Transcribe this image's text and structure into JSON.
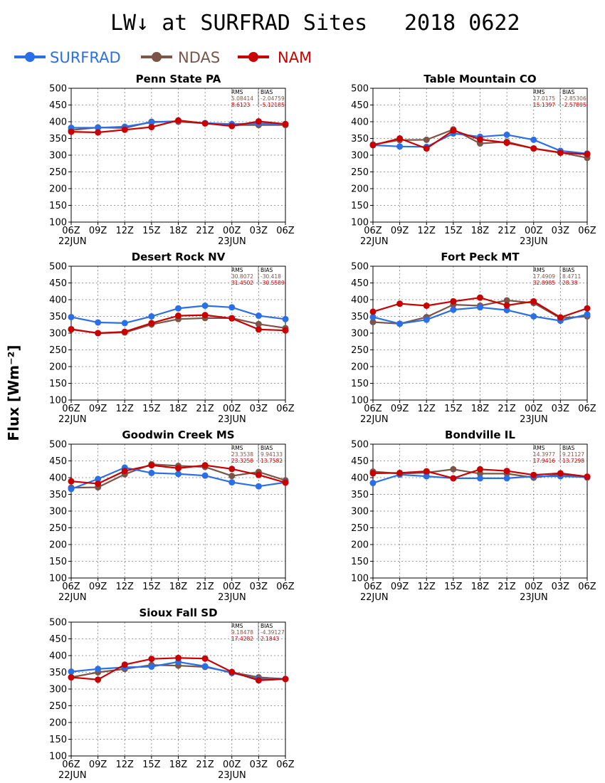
{
  "header": {
    "title": "LW↓ at SURFRAD Sites",
    "date": "2018 0622"
  },
  "colors": {
    "SURFRAD": "#2a6fe6",
    "NDAS": "#7a5548",
    "NAM": "#c80000"
  },
  "y_axis_label": "Flux [Wm⁻²]",
  "chart_data": [
    {
      "type": "line",
      "title": "Penn State PA",
      "categories": [
        "06Z",
        "09Z",
        "12Z",
        "15Z",
        "18Z",
        "21Z",
        "00Z",
        "03Z",
        "06Z"
      ],
      "date_labels": [
        "22JUN",
        "23JUN"
      ],
      "ylim": [
        100,
        500
      ],
      "yticks": [
        100,
        150,
        200,
        250,
        300,
        350,
        400,
        450,
        500
      ],
      "grid": true,
      "series": [
        {
          "name": "SURFRAD",
          "values": [
            382,
            382,
            385,
            398,
            402,
            396,
            393,
            395,
            393
          ]
        },
        {
          "name": "NDAS",
          "values": [
            375,
            383,
            381,
            400,
            400,
            395,
            390,
            390,
            390
          ]
        },
        {
          "name": "NAM",
          "values": [
            370,
            368,
            376,
            384,
            404,
            395,
            387,
            401,
            393
          ]
        }
      ],
      "stats": {
        "headers": [
          "RMS",
          "BIAS"
        ],
        "NDAS": [
          "5.08414",
          "-2.04759"
        ],
        "NAM": [
          "8.6123",
          "-5.12185"
        ]
      }
    },
    {
      "type": "line",
      "title": "Table Mountain CO",
      "categories": [
        "06Z",
        "09Z",
        "12Z",
        "15Z",
        "18Z",
        "21Z",
        "00Z",
        "03Z",
        "06Z"
      ],
      "date_labels": [
        "22JUN",
        "23JUN"
      ],
      "ylim": [
        100,
        500
      ],
      "yticks": [
        100,
        150,
        200,
        250,
        300,
        350,
        400,
        450,
        500
      ],
      "grid": true,
      "series": [
        {
          "name": "SURFRAD",
          "values": [
            330,
            326,
            325,
            365,
            355,
            361,
            346,
            313,
            305
          ]
        },
        {
          "name": "NDAS",
          "values": [
            332,
            345,
            346,
            377,
            335,
            340,
            320,
            308,
            292
          ]
        },
        {
          "name": "NAM",
          "values": [
            330,
            350,
            320,
            374,
            347,
            337,
            320,
            307,
            303
          ]
        }
      ],
      "stats": {
        "headers": [
          "RMS",
          "BIAS"
        ],
        "NDAS": [
          "17.0175",
          "-2.85306"
        ],
        "NAM": [
          "15.1397",
          "-2.57895"
        ]
      }
    },
    {
      "type": "line",
      "title": "Desert Rock NV",
      "categories": [
        "06Z",
        "09Z",
        "12Z",
        "15Z",
        "18Z",
        "21Z",
        "00Z",
        "03Z",
        "06Z"
      ],
      "date_labels": [
        "22JUN",
        "23JUN"
      ],
      "ylim": [
        100,
        500
      ],
      "yticks": [
        100,
        150,
        200,
        250,
        300,
        350,
        400,
        450,
        500
      ],
      "grid": true,
      "series": [
        {
          "name": "SURFRAD",
          "values": [
            348,
            332,
            330,
            350,
            374,
            382,
            377,
            352,
            342
          ]
        },
        {
          "name": "NDAS",
          "values": [
            312,
            300,
            302,
            326,
            342,
            345,
            345,
            327,
            315
          ]
        },
        {
          "name": "NAM",
          "values": [
            311,
            300,
            304,
            330,
            352,
            354,
            344,
            311,
            308
          ]
        }
      ],
      "stats": {
        "headers": [
          "RMS",
          "BIAS"
        ],
        "NDAS": [
          "30.8072",
          "-30.418"
        ],
        "NAM": [
          "31.4502",
          "-30.5589"
        ]
      }
    },
    {
      "type": "line",
      "title": "Fort Peck MT",
      "categories": [
        "06Z",
        "09Z",
        "12Z",
        "15Z",
        "18Z",
        "21Z",
        "00Z",
        "03Z",
        "06Z"
      ],
      "date_labels": [
        "22JUN",
        "23JUN"
      ],
      "ylim": [
        100,
        500
      ],
      "yticks": [
        100,
        150,
        200,
        250,
        300,
        350,
        400,
        450,
        500
      ],
      "grid": true,
      "series": [
        {
          "name": "SURFRAD",
          "values": [
            348,
            328,
            340,
            370,
            377,
            369,
            350,
            337,
            356
          ]
        },
        {
          "name": "NDAS",
          "values": [
            333,
            328,
            348,
            385,
            382,
            398,
            390,
            345,
            350
          ]
        },
        {
          "name": "NAM",
          "values": [
            364,
            388,
            382,
            395,
            406,
            383,
            395,
            347,
            374
          ]
        }
      ],
      "stats": {
        "headers": [
          "RMS",
          "BIAS"
        ],
        "NDAS": [
          "17.4909",
          "8.4711"
        ],
        "NAM": [
          "32.8985",
          "28.38"
        ]
      }
    },
    {
      "type": "line",
      "title": "Goodwin Creek MS",
      "categories": [
        "06Z",
        "09Z",
        "12Z",
        "15Z",
        "18Z",
        "21Z",
        "00Z",
        "03Z",
        "06Z"
      ],
      "date_labels": [
        "22JUN",
        "23JUN"
      ],
      "ylim": [
        100,
        500
      ],
      "yticks": [
        100,
        150,
        200,
        250,
        300,
        350,
        400,
        450,
        500
      ],
      "grid": true,
      "series": [
        {
          "name": "SURFRAD",
          "values": [
            366,
            396,
            430,
            414,
            411,
            406,
            386,
            374,
            386
          ]
        },
        {
          "name": "NDAS",
          "values": [
            370,
            371,
            410,
            440,
            435,
            432,
            405,
            417,
            392
          ]
        },
        {
          "name": "NAM",
          "values": [
            389,
            382,
            420,
            437,
            428,
            437,
            426,
            408,
            385
          ]
        }
      ],
      "stats": {
        "headers": [
          "RMS",
          "BIAS"
        ],
        "NDAS": [
          "23.3538",
          "9.94133"
        ],
        "NAM": [
          "23.3258",
          "13.7582"
        ]
      }
    },
    {
      "type": "line",
      "title": "Bondville IL",
      "categories": [
        "06Z",
        "09Z",
        "12Z",
        "15Z",
        "18Z",
        "21Z",
        "00Z",
        "03Z",
        "06Z"
      ],
      "date_labels": [
        "22JUN",
        "23JUN"
      ],
      "ylim": [
        100,
        500
      ],
      "yticks": [
        100,
        150,
        200,
        250,
        300,
        350,
        400,
        450,
        500
      ],
      "grid": true,
      "series": [
        {
          "name": "SURFRAD",
          "values": [
            384,
            409,
            404,
            398,
            398,
            398,
            404,
            404,
            402
          ]
        },
        {
          "name": "NDAS",
          "values": [
            418,
            412,
            415,
            425,
            412,
            412,
            400,
            410,
            400
          ]
        },
        {
          "name": "NAM",
          "values": [
            413,
            414,
            419,
            398,
            425,
            420,
            408,
            413,
            403
          ]
        }
      ],
      "stats": {
        "headers": [
          "RMS",
          "BIAS"
        ],
        "NDAS": [
          "14.3977",
          "9.21127"
        ],
        "NAM": [
          "17.9416",
          "13.7298"
        ]
      }
    },
    {
      "type": "line",
      "title": "Sioux Fall SD",
      "categories": [
        "06Z",
        "09Z",
        "12Z",
        "15Z",
        "18Z",
        "21Z",
        "00Z",
        "03Z",
        "06Z"
      ],
      "date_labels": [
        "22JUN",
        "23JUN"
      ],
      "ylim": [
        100,
        500
      ],
      "yticks": [
        100,
        150,
        200,
        250,
        300,
        350,
        400,
        450,
        500
      ],
      "grid": true,
      "series": [
        {
          "name": "SURFRAD",
          "values": [
            352,
            360,
            365,
            367,
            381,
            368,
            348,
            330,
            330
          ]
        },
        {
          "name": "NDAS",
          "values": [
            335,
            350,
            360,
            372,
            370,
            366,
            350,
            335,
            330
          ]
        },
        {
          "name": "NAM",
          "values": [
            335,
            328,
            373,
            390,
            393,
            391,
            351,
            326,
            330
          ]
        }
      ],
      "stats": {
        "headers": [
          "RMS",
          "BIAS"
        ],
        "NDAS": [
          "9.18478",
          "-4.39127"
        ],
        "NAM": [
          "17.4282",
          "2.1843"
        ]
      }
    }
  ]
}
